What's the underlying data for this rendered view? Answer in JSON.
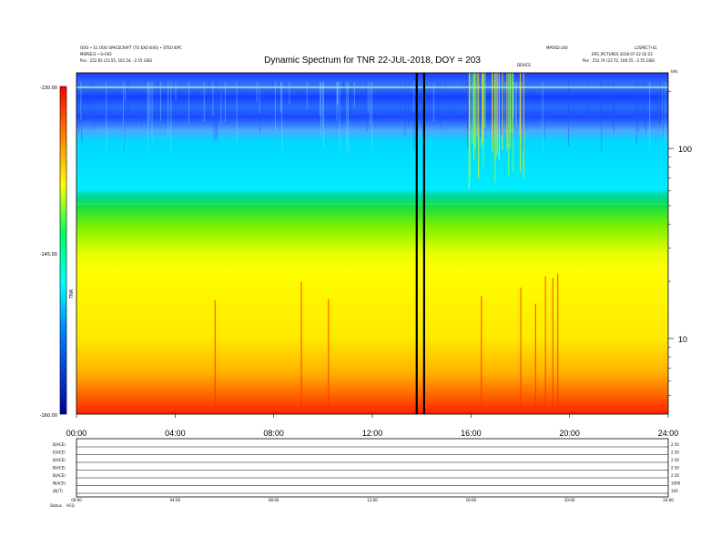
{
  "header": {
    "title": "Dynamic Spectrum for TNR 22-JUL-2018, DOY = 203",
    "left_line1": "OOO • S1 OOO SPACECRAFT (TO EXO IEIIS) • STEO IEPC",
    "left_line2": "MSPEE/3 • S•002",
    "left_line3": "Pos :  252.65 (23.55, 101.54, -2.55 GSE)",
    "right_code": "MPOSD-240",
    "right_line1": "L2SPECT•S1",
    "right_line2": "ERS_PICTURES 2018-07-22 02:22",
    "right_line3": "Pos :  252.74 (23.72, 100.55, -2.55 GSE)",
    "marker_label": "DEVICE",
    "corner_label": "kHz"
  },
  "colorbar": {
    "label": "TNR",
    "ticks": [
      "-130.00",
      "-145.00",
      "-160.00"
    ],
    "colors": [
      "#ff0000",
      "#ff8000",
      "#ffff00",
      "#00ff60",
      "#00ffff",
      "#0080ff",
      "#0000a0"
    ]
  },
  "chart_data": {
    "type": "heatmap",
    "title": "Dynamic Spectrum for TNR 22-JUL-2018, DOY = 203",
    "x_ticks": [
      "00:00",
      "04:00",
      "08:00",
      "12:00",
      "16:00",
      "20:00",
      "24:00"
    ],
    "x_range_hours": [
      0,
      24
    ],
    "y_scale": "log",
    "y_ticks": [
      100,
      10
    ],
    "y_range_khz": [
      4,
      250
    ],
    "z_range": [
      -160,
      -130
    ],
    "z_ticks": [
      -130,
      -145,
      -160
    ],
    "data_gap_hours": [
      13.8,
      14.1
    ],
    "bands": [
      {
        "freq_khz": [
          170,
          250
        ],
        "level": -131
      },
      {
        "freq_khz": [
          55,
          170
        ],
        "level": -137
      },
      {
        "freq_khz": [
          25,
          55
        ],
        "level": -141
      },
      {
        "freq_khz": [
          7,
          25
        ],
        "level": -148
      },
      {
        "freq_khz": [
          4,
          7
        ],
        "level": -154
      }
    ]
  },
  "bottom_panel": {
    "left_labels": [
      "B(ACE)",
      "E(ACE)",
      "B(ACE)",
      "B(ACE)",
      "B(ACE)",
      "N(ACE)",
      "|B|(T)"
    ],
    "left_label_extra": "Status",
    "left_label_extra2": "ACQ",
    "right_labels": [
      "2.50",
      "2.50",
      "2.50",
      "2.50",
      "2.50",
      "1000",
      "100"
    ],
    "x_ticks": [
      "00:00",
      "04:00",
      "08:00",
      "12:00",
      "16:00",
      "20:00",
      "24:00"
    ]
  }
}
